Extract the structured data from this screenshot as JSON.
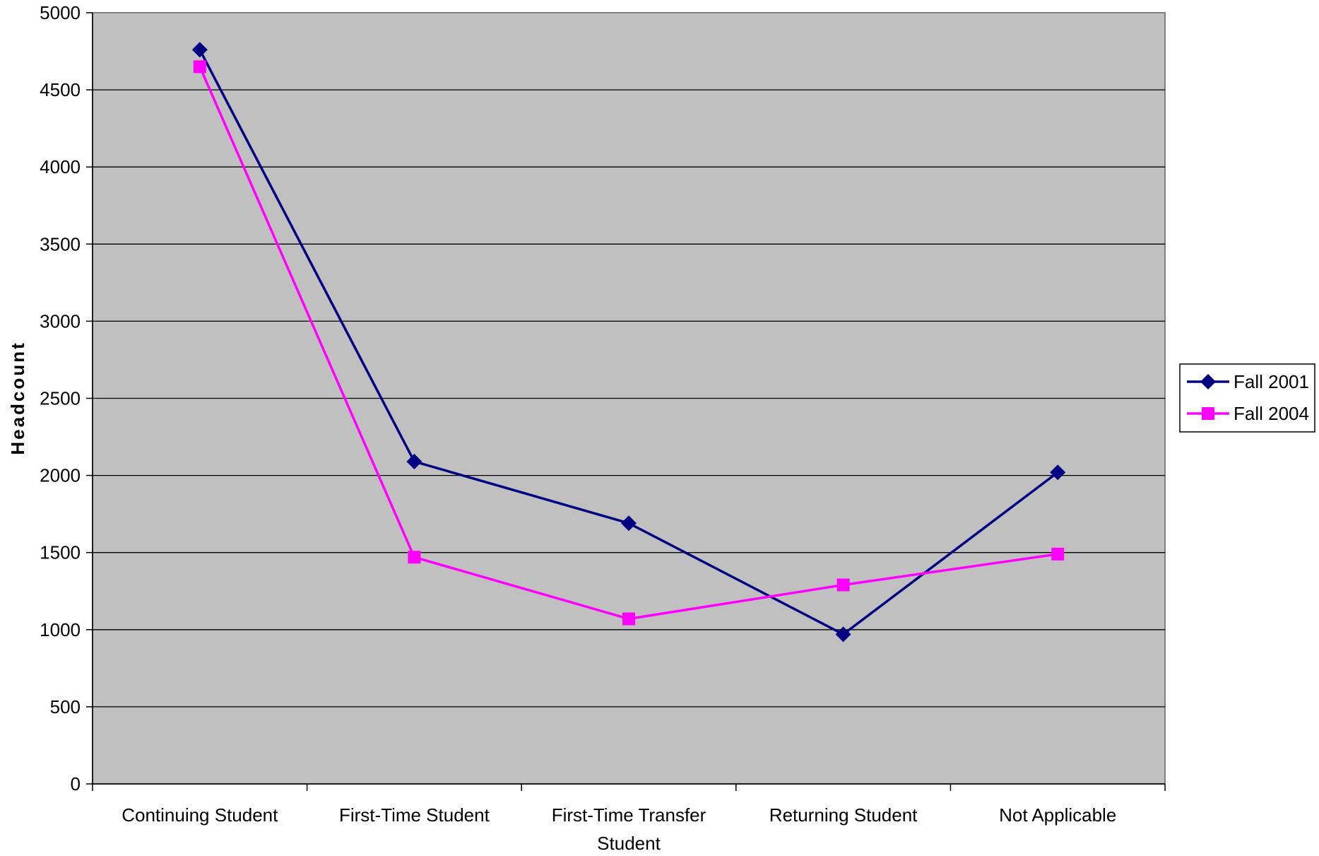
{
  "chart_data": {
    "type": "line",
    "title": "",
    "xlabel": "",
    "ylabel": "Headcount",
    "ylim": [
      0,
      5000
    ],
    "yticks": [
      0,
      500,
      1000,
      1500,
      2000,
      2500,
      3000,
      3500,
      4000,
      4500,
      5000
    ],
    "categories": [
      [
        "Continuing Student"
      ],
      [
        "First-Time Student"
      ],
      [
        "First-Time Transfer",
        "Student"
      ],
      [
        "Returning Student"
      ],
      [
        "Not Applicable"
      ]
    ],
    "series": [
      {
        "name": "Fall 2001",
        "color": "#000080",
        "marker": "diamond",
        "values": [
          4760,
          2090,
          1690,
          970,
          2020
        ]
      },
      {
        "name": "Fall 2004",
        "color": "#ff00ff",
        "marker": "square",
        "values": [
          4650,
          1470,
          1070,
          1290,
          1490
        ]
      }
    ],
    "grid": true,
    "plot_background": "#c0c0c0",
    "legend": "right"
  }
}
